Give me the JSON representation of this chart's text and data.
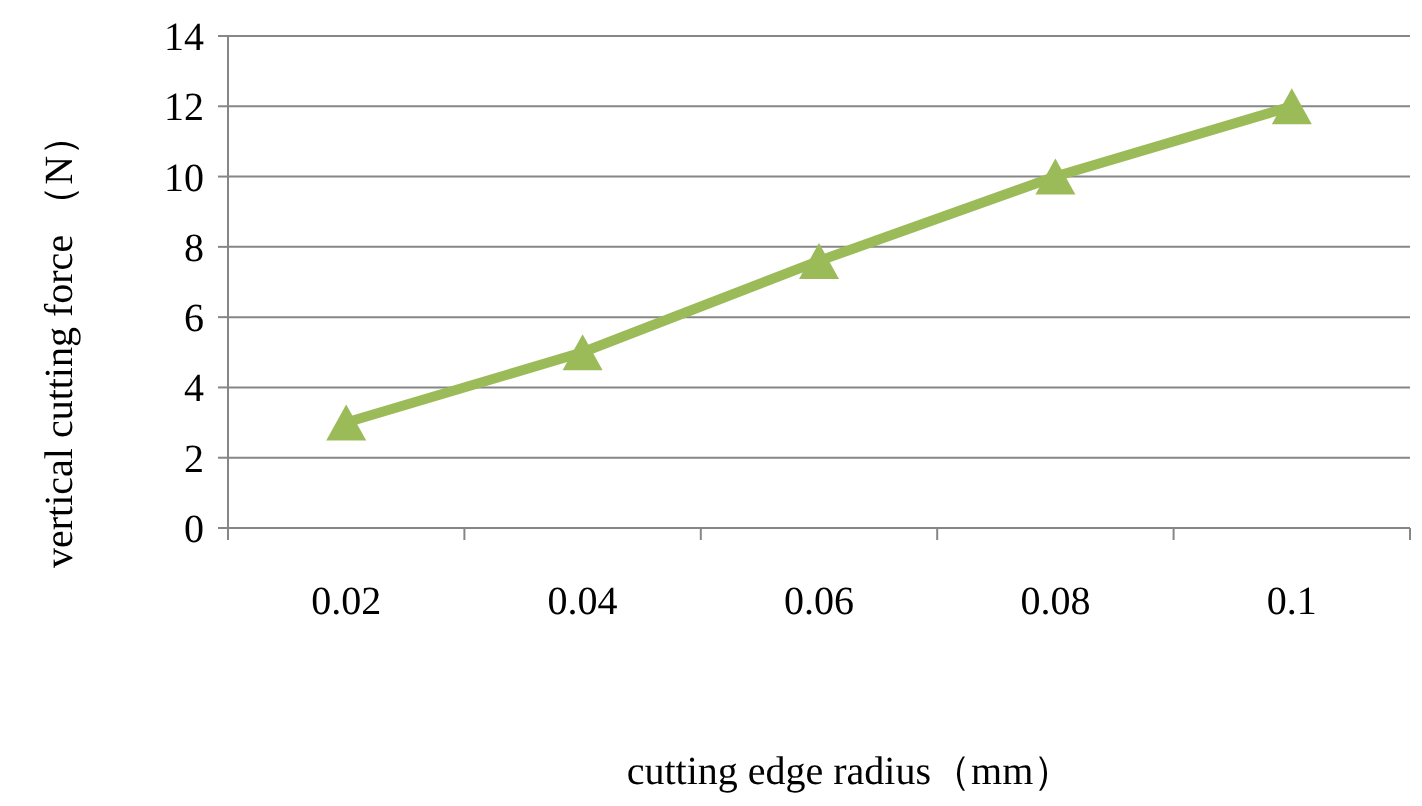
{
  "chart_data": {
    "type": "line",
    "xlabel": "cutting edge radius（mm）",
    "ylabel": "vertical cutting force （N）",
    "categories": [
      "0.02",
      "0.04",
      "0.06",
      "0.08",
      "0.1"
    ],
    "series": [
      {
        "color": "#9bbb59",
        "values": [
          3,
          5,
          7.6,
          10,
          12
        ]
      }
    ],
    "ylim": [
      0,
      14
    ],
    "yticks": [
      0,
      2,
      4,
      6,
      8,
      10,
      12,
      14
    ],
    "grid": "y",
    "marker": "triangle",
    "line_style": "solid"
  }
}
